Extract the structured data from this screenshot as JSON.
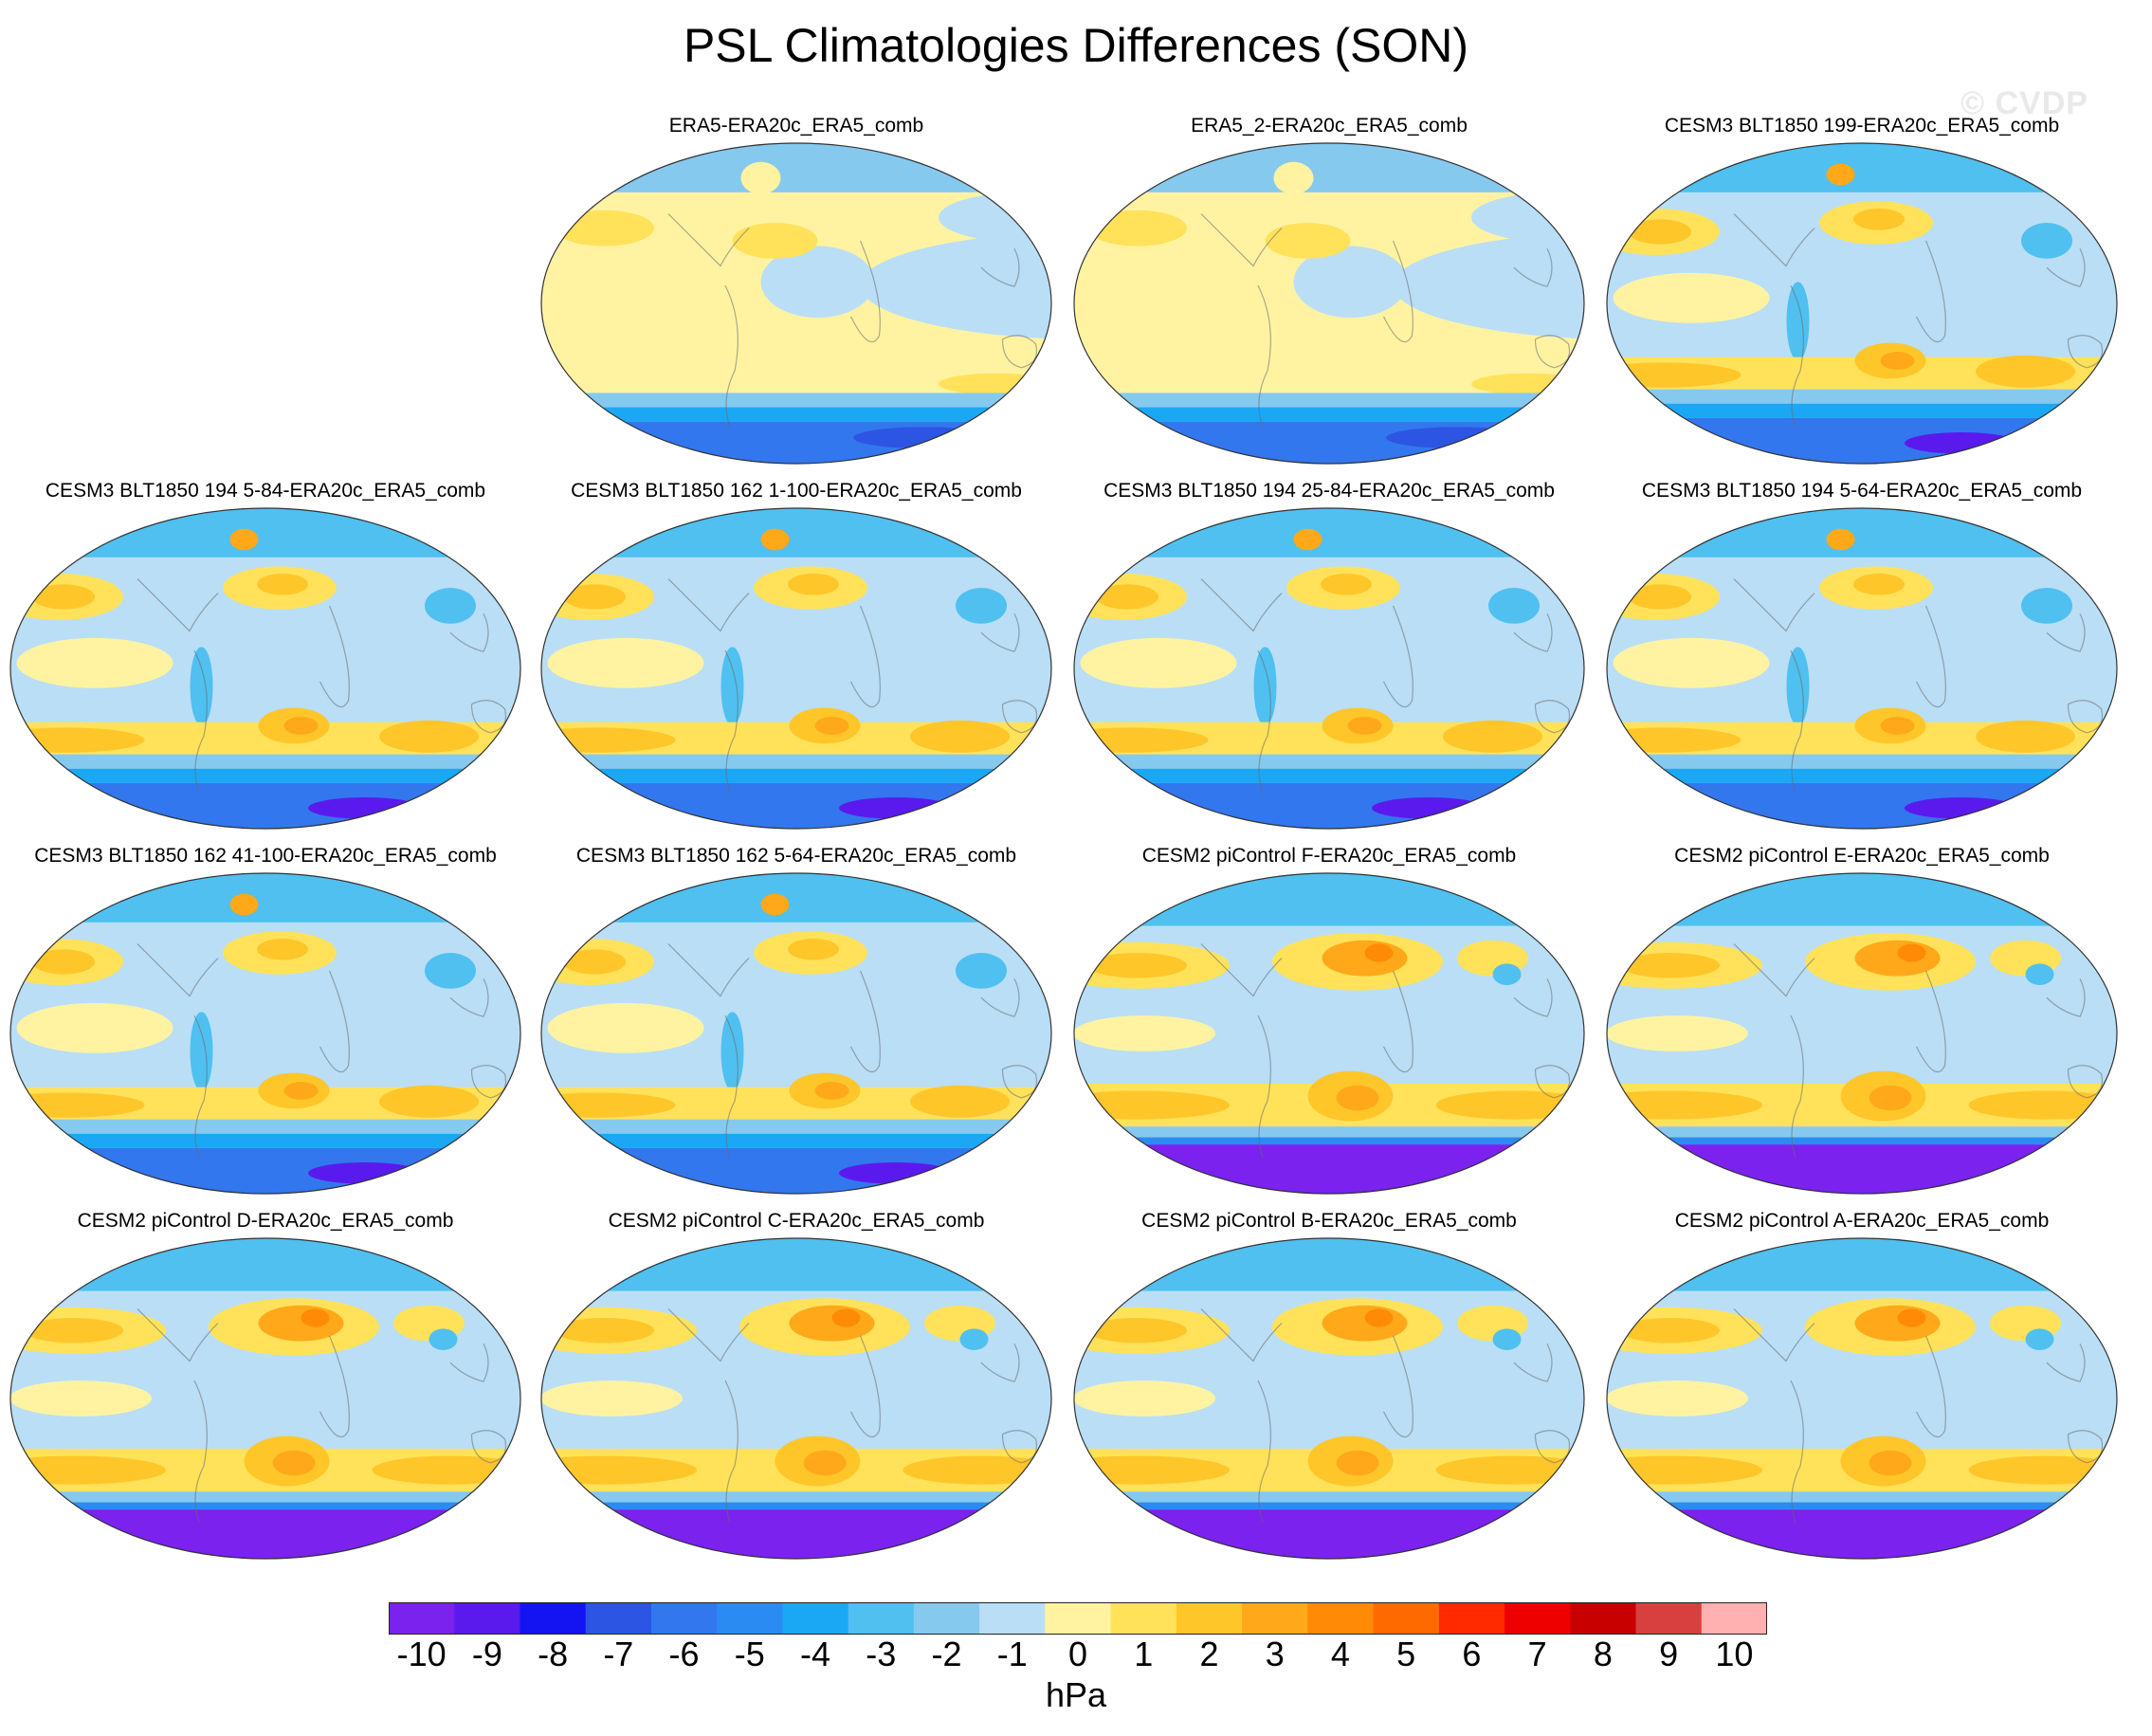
{
  "title": "PSL Climatologies Differences (SON)",
  "watermark": "© CVDP",
  "units": "hPa",
  "colorbar": {
    "labels": [
      "-10",
      "-9",
      "-8",
      "-7",
      "-6",
      "-5",
      "-4",
      "-3",
      "-2",
      "-1",
      "0",
      "1",
      "2",
      "3",
      "4",
      "5",
      "6",
      "7",
      "8",
      "9",
      "10"
    ],
    "colors": [
      "#7b22ee",
      "#5a1aee",
      "#1414f2",
      "#2d55e3",
      "#3377ee",
      "#2a8cf2",
      "#1aa8f5",
      "#4fc0f0",
      "#86c9ef",
      "#b9def6",
      "#fff3a2",
      "#ffe25a",
      "#ffc62a",
      "#ffa81a",
      "#ff8a06",
      "#ff6a00",
      "#ff2a00",
      "#ee0000",
      "#c80000",
      "#d84040",
      "#ffb0b0"
    ]
  },
  "panels": [
    {
      "title": "ERA5-ERA20c_ERA5_comb",
      "style": "obs"
    },
    {
      "title": "ERA5_2-ERA20c_ERA5_comb",
      "style": "obs"
    },
    {
      "title": "CESM3 BLT1850 199-ERA20c_ERA5_comb",
      "style": "cesm3"
    },
    {
      "title": "CESM3 BLT1850 194 5-84-ERA20c_ERA5_comb",
      "style": "cesm3"
    },
    {
      "title": "CESM3 BLT1850 162 1-100-ERA20c_ERA5_comb",
      "style": "cesm3"
    },
    {
      "title": "CESM3 BLT1850 194 25-84-ERA20c_ERA5_comb",
      "style": "cesm3"
    },
    {
      "title": "CESM3 BLT1850 194 5-64-ERA20c_ERA5_comb",
      "style": "cesm3"
    },
    {
      "title": "CESM3 BLT1850 162 41-100-ERA20c_ERA5_comb",
      "style": "cesm3"
    },
    {
      "title": "CESM3 BLT1850 162 5-64-ERA20c_ERA5_comb",
      "style": "cesm3"
    },
    {
      "title": "CESM2 piControl F-ERA20c_ERA5_comb",
      "style": "cesm2"
    },
    {
      "title": "CESM2 piControl E-ERA20c_ERA5_comb",
      "style": "cesm2"
    },
    {
      "title": "CESM2 piControl D-ERA20c_ERA5_comb",
      "style": "cesm2"
    },
    {
      "title": "CESM2 piControl C-ERA20c_ERA5_comb",
      "style": "cesm2"
    },
    {
      "title": "CESM2 piControl B-ERA20c_ERA5_comb",
      "style": "cesm2"
    },
    {
      "title": "CESM2 piControl A-ERA20c_ERA5_comb",
      "style": "cesm2"
    }
  ]
}
